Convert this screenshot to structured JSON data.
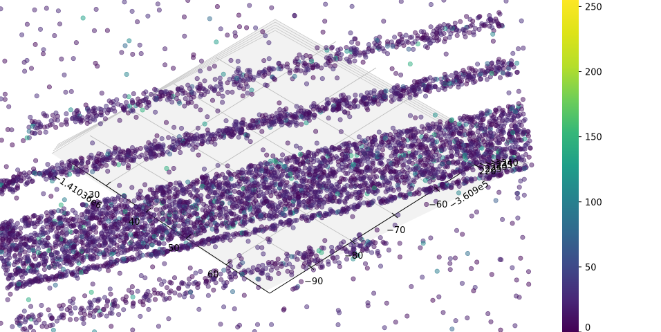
{
  "chart_data": {
    "type": "scatter",
    "projection": "3d",
    "colormap": "viridis",
    "point_alpha": 0.5,
    "grid": true,
    "colorbar": {
      "ticks": [
        0,
        50,
        100,
        150,
        200,
        250
      ],
      "labels": [
        "0",
        "50",
        "100",
        "150",
        "200",
        "250"
      ],
      "range": [
        0,
        255
      ]
    },
    "axes": {
      "x": {
        "offset_text": "−1.41036e6",
        "tick_labels": [
          "60",
          "50",
          "40",
          "30"
        ],
        "ticks": [
          60,
          50,
          40,
          30
        ]
      },
      "y": {
        "offset_text": "−3.609e5",
        "tick_labels": [
          "−90",
          "−80",
          "−70",
          "−60"
        ],
        "ticks": [
          -90,
          -80,
          -70,
          -60
        ]
      },
      "z": {
        "tick_labels": [
          "220",
          "225",
          "230",
          "235",
          "240"
        ]
      }
    },
    "series": [
      {
        "name": "",
        "description_value_range": [
          0,
          255
        ],
        "typical_value": 15
      }
    ]
  },
  "colors": {
    "pane": "#f2f2f2",
    "grid": "#b0b0b0",
    "point_main": "#440154",
    "point_highlight": "#3b528b"
  }
}
